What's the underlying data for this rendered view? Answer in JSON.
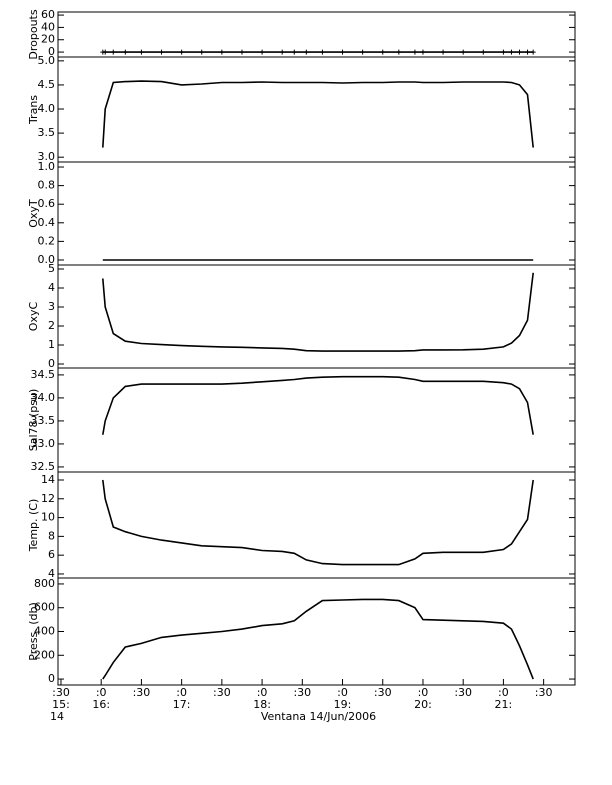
{
  "chart_data": {
    "type": "line",
    "xlabel": "Ventana 14/Jun/2006",
    "xlim": [
      15.463,
      21.89
    ],
    "xticks": [
      {
        "value": 15.5,
        "label": ":30"
      },
      {
        "value": 16,
        "label": ":0"
      },
      {
        "value": 16.5,
        "label": ":30"
      },
      {
        "value": 17,
        "label": ":0"
      },
      {
        "value": 17.5,
        "label": ":30"
      },
      {
        "value": 18,
        "label": ":0"
      },
      {
        "value": 18.5,
        "label": ":30"
      },
      {
        "value": 19,
        "label": ":0"
      },
      {
        "value": 19.5,
        "label": ":30"
      },
      {
        "value": 20,
        "label": ":0"
      },
      {
        "value": 20.5,
        "label": ":30"
      },
      {
        "value": 21,
        "label": ":0"
      },
      {
        "value": 21.5,
        "label": ":30"
      }
    ],
    "x_hour_labels": [
      {
        "value": 15.5,
        "label": "15:"
      },
      {
        "value": 16,
        "label": "16:"
      },
      {
        "value": 17,
        "label": "17:"
      },
      {
        "value": 18,
        "label": "18:"
      },
      {
        "value": 19,
        "label": "19:"
      },
      {
        "value": 20,
        "label": "20:"
      },
      {
        "value": 21,
        "label": "21:"
      }
    ],
    "x_day_label": {
      "value": 15.5,
      "label": "14"
    },
    "x": [
      16.02,
      16.05,
      16.15,
      16.3,
      16.5,
      16.75,
      17.0,
      17.25,
      17.5,
      17.75,
      18.0,
      18.25,
      18.4,
      18.55,
      18.75,
      19.0,
      19.25,
      19.5,
      19.7,
      19.9,
      20.0,
      20.25,
      20.5,
      20.75,
      21.0,
      21.1,
      21.2,
      21.3,
      21.37
    ],
    "panels": [
      {
        "ylabel": "Dropouts",
        "ylim": [
          -8,
          65
        ],
        "yticks": [
          0,
          20,
          40,
          60
        ],
        "color": "#000000",
        "marker": "plus",
        "values": [
          0,
          0,
          0,
          0,
          0,
          0,
          0,
          0,
          0,
          0,
          0,
          0,
          0,
          0,
          0,
          0,
          0,
          0,
          0,
          0,
          0,
          0,
          0,
          0,
          0,
          0,
          0,
          0,
          0
        ]
      },
      {
        "ylabel": "Trans",
        "ylim": [
          2.9,
          5.08
        ],
        "yticks": [
          {
            "value": 3,
            "label": "3.0"
          },
          3.5,
          {
            "value": 4,
            "label": "4.0"
          },
          4.5,
          {
            "value": 5,
            "label": "5.0"
          }
        ],
        "color": "#000000",
        "values": [
          3.2,
          4.0,
          4.55,
          4.57,
          4.58,
          4.57,
          4.5,
          4.52,
          4.55,
          4.55,
          4.56,
          4.55,
          4.55,
          4.55,
          4.55,
          4.54,
          4.55,
          4.55,
          4.56,
          4.56,
          4.55,
          4.55,
          4.56,
          4.56,
          4.56,
          4.55,
          4.5,
          4.3,
          3.2
        ]
      },
      {
        "ylabel": "OxyT",
        "ylim": [
          -0.054,
          1.054
        ],
        "yticks": [
          {
            "value": 0,
            "label": "0.0"
          },
          0.2,
          0.4,
          0.6,
          0.8,
          {
            "value": 1,
            "label": "1.0"
          }
        ],
        "color": "#000000",
        "values": [
          0,
          0,
          0,
          0,
          0,
          0,
          0,
          0,
          0,
          0,
          0,
          0,
          0,
          0,
          0,
          0,
          0,
          0,
          0,
          0,
          0,
          0,
          0,
          0,
          0,
          0,
          0,
          0,
          0
        ]
      },
      {
        "ylabel": "OxyC",
        "ylim": [
          -0.21,
          5.21
        ],
        "yticks": [
          0,
          1,
          2,
          3,
          4,
          5
        ],
        "color": "#000000",
        "values": [
          4.5,
          3,
          1.6,
          1.2,
          1.08,
          1.02,
          0.97,
          0.93,
          0.9,
          0.88,
          0.85,
          0.82,
          0.78,
          0.7,
          0.68,
          0.68,
          0.68,
          0.68,
          0.68,
          0.7,
          0.74,
          0.74,
          0.75,
          0.78,
          0.9,
          1.1,
          1.5,
          2.3,
          4.8
        ]
      },
      {
        "ylabel": "Sal78 (psu)",
        "ylim": [
          32.39,
          34.65
        ],
        "yticks": [
          32.5,
          {
            "value": 33,
            "label": "33.0"
          },
          33.5,
          {
            "value": 34,
            "label": "34.0"
          },
          34.5
        ],
        "color": "#000000",
        "values": [
          33.2,
          33.5,
          34.0,
          34.25,
          34.3,
          34.3,
          34.3,
          34.3,
          34.3,
          34.32,
          34.35,
          34.38,
          34.4,
          34.43,
          34.45,
          34.46,
          34.46,
          34.46,
          34.45,
          34.4,
          34.36,
          34.36,
          34.36,
          34.36,
          34.33,
          34.3,
          34.2,
          33.9,
          33.2
        ]
      },
      {
        "ylabel": "Temp. (C)",
        "ylim": [
          3.57,
          14.85
        ],
        "yticks": [
          4,
          6,
          8,
          10,
          12,
          14
        ],
        "color": "#000000",
        "values": [
          14,
          12,
          9,
          8.5,
          8.0,
          7.6,
          7.3,
          7.0,
          6.9,
          6.8,
          6.5,
          6.4,
          6.2,
          5.5,
          5.1,
          5.0,
          5.0,
          5.0,
          5.0,
          5.6,
          6.2,
          6.3,
          6.3,
          6.3,
          6.6,
          7.2,
          8.5,
          9.8,
          14
        ]
      },
      {
        "ylabel": "Press. (db)",
        "ylim": [
          -50,
          850
        ],
        "yticks": [
          0,
          200,
          400,
          600,
          800
        ],
        "color": "#000000",
        "values": [
          0,
          30,
          140,
          270,
          300,
          350,
          370,
          385,
          400,
          420,
          450,
          465,
          490,
          570,
          660,
          665,
          670,
          670,
          660,
          600,
          500,
          495,
          490,
          485,
          470,
          420,
          280,
          120,
          0
        ]
      }
    ]
  }
}
